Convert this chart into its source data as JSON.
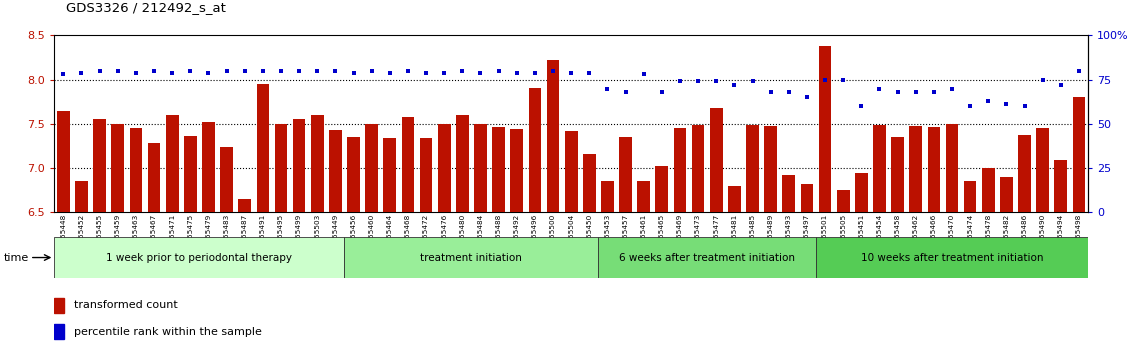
{
  "title": "GDS3326 / 212492_s_at",
  "ylim_left": [
    6.5,
    8.5
  ],
  "ylim_right": [
    0,
    100
  ],
  "yticks_left": [
    6.5,
    7.0,
    7.5,
    8.0,
    8.5
  ],
  "ytick_labels_right": [
    "0",
    "25",
    "50",
    "75",
    "100%"
  ],
  "yticks_right": [
    0,
    25,
    50,
    75,
    100
  ],
  "bar_color": "#bb1100",
  "dot_color": "#0000cc",
  "background_color": "#ffffff",
  "plot_bg": "#ffffff",
  "group_colors": [
    "#ccffcc",
    "#99ee99",
    "#77dd77",
    "#55cc55"
  ],
  "groups": [
    {
      "label": "1 week prior to periodontal therapy",
      "start": 0,
      "end": 16
    },
    {
      "label": "treatment initiation",
      "start": 16,
      "end": 30
    },
    {
      "label": "6 weeks after treatment initiation",
      "start": 30,
      "end": 42
    },
    {
      "label": "10 weeks after treatment initiation",
      "start": 42,
      "end": 57
    }
  ],
  "samples": [
    "GSM155448",
    "GSM155452",
    "GSM155455",
    "GSM155459",
    "GSM155463",
    "GSM155467",
    "GSM155471",
    "GSM155475",
    "GSM155479",
    "GSM155483",
    "GSM155487",
    "GSM155491",
    "GSM155495",
    "GSM155499",
    "GSM155503",
    "GSM155449",
    "GSM155456",
    "GSM155460",
    "GSM155464",
    "GSM155468",
    "GSM155472",
    "GSM155476",
    "GSM155480",
    "GSM155484",
    "GSM155488",
    "GSM155492",
    "GSM155496",
    "GSM155500",
    "GSM155504",
    "GSM155450",
    "GSM155453",
    "GSM155457",
    "GSM155461",
    "GSM155465",
    "GSM155469",
    "GSM155473",
    "GSM155477",
    "GSM155481",
    "GSM155485",
    "GSM155489",
    "GSM155493",
    "GSM155497",
    "GSM155501",
    "GSM155505",
    "GSM155451",
    "GSM155454",
    "GSM155458",
    "GSM155462",
    "GSM155466",
    "GSM155470",
    "GSM155474",
    "GSM155478",
    "GSM155482",
    "GSM155486",
    "GSM155490",
    "GSM155494",
    "GSM155498"
  ],
  "bar_heights": [
    7.65,
    6.85,
    7.55,
    7.5,
    7.45,
    7.28,
    7.6,
    7.36,
    7.52,
    7.24,
    6.65,
    7.95,
    7.5,
    7.55,
    7.6,
    7.43,
    7.35,
    7.5,
    7.34,
    7.58,
    7.34,
    7.5,
    7.6,
    7.5,
    7.47,
    7.44,
    7.9,
    8.22,
    7.42,
    7.16,
    6.85,
    7.35,
    6.85,
    7.02,
    7.45,
    7.49,
    7.68,
    6.8,
    7.49,
    7.48,
    6.92,
    6.82,
    8.38,
    6.75,
    6.95,
    7.49,
    7.35,
    7.48,
    7.47,
    7.5,
    6.85,
    7.0,
    6.9,
    7.38,
    7.45,
    7.09,
    7.8
  ],
  "percentile_values": [
    78,
    79,
    80,
    80,
    79,
    80,
    79,
    80,
    79,
    80,
    80,
    80,
    80,
    80,
    80,
    80,
    79,
    80,
    79,
    80,
    79,
    79,
    80,
    79,
    80,
    79,
    79,
    80,
    79,
    79,
    70,
    68,
    78,
    68,
    74,
    74,
    74,
    72,
    74,
    68,
    68,
    65,
    75,
    75,
    60,
    70,
    68,
    68,
    68,
    70,
    60,
    63,
    61,
    60,
    75,
    72,
    80
  ]
}
